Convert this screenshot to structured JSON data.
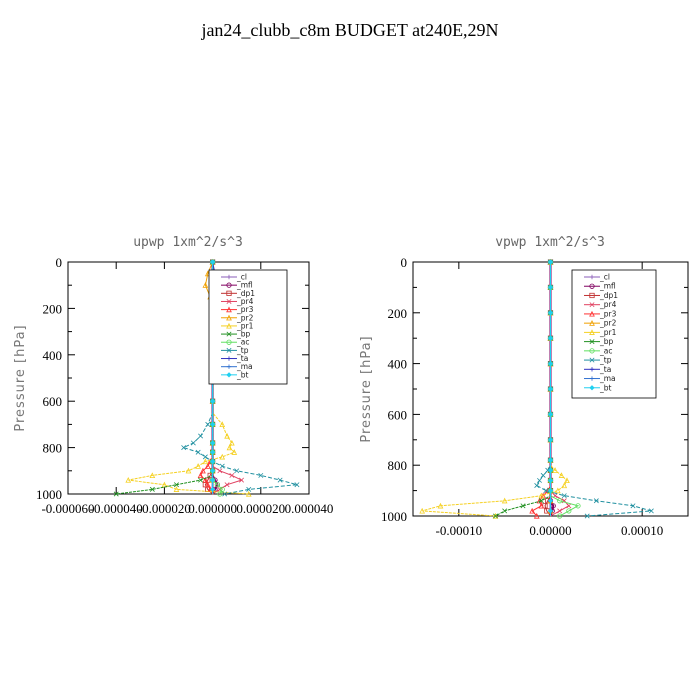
{
  "title": "jan24_clubb_c8m  BUDGET at240E,29N",
  "chart_data": [
    {
      "type": "line",
      "title": "upwp   1xm^2/s^3",
      "ylabel": "Pressure [hPa]",
      "xlim": [
        -6e-05,
        4e-05
      ],
      "ylim": [
        1000,
        0
      ],
      "xticks": [
        "-0.000060",
        "-0.000040",
        "-0.000020",
        "0.000000",
        "0.000020",
        "0.000040"
      ],
      "xtick_values": [
        -6e-05,
        -4e-05,
        -2e-05,
        0,
        2e-05,
        4e-05
      ],
      "yticks": [
        0,
        200,
        400,
        600,
        800,
        1000
      ],
      "y": [
        0,
        50,
        100,
        150,
        200,
        250,
        300,
        350,
        400,
        450,
        500,
        550,
        600,
        650,
        700,
        750,
        780,
        800,
        820,
        840,
        860,
        880,
        900,
        920,
        940,
        960,
        980,
        1000
      ],
      "series": [
        {
          "name": "_cl",
          "color": "#8a5cb8",
          "values": [
            0,
            0,
            0,
            0,
            0,
            0,
            0,
            0,
            0,
            0,
            0,
            0,
            0,
            0,
            0,
            0,
            0,
            0,
            0,
            0,
            0,
            0,
            0,
            0,
            0,
            0,
            0,
            0
          ]
        },
        {
          "name": "_mfl",
          "color": "#800060",
          "values": [
            0,
            0,
            0,
            0,
            0,
            0,
            0,
            0,
            0,
            0,
            0,
            0,
            0,
            0,
            0,
            0,
            0,
            0,
            0,
            0,
            0,
            0,
            0,
            0,
            1e-06,
            2e-06,
            1e-06,
            0
          ]
        },
        {
          "name": "_dp1",
          "color": "#c03030",
          "values": [
            0,
            0,
            0,
            0,
            0,
            0,
            0,
            0,
            0,
            0,
            0,
            0,
            0,
            0,
            0,
            0,
            0,
            0,
            0,
            0,
            0,
            0,
            0,
            -1e-06,
            -2e-06,
            -3e-06,
            -2e-06,
            0
          ]
        },
        {
          "name": "_pr4",
          "color": "#e04060",
          "values": [
            0,
            0,
            0,
            0,
            0,
            0,
            0,
            0,
            0,
            0,
            0,
            0,
            0,
            0,
            0,
            0,
            0,
            0,
            0,
            0,
            0,
            0,
            3e-06,
            8e-06,
            1.2e-05,
            6e-06,
            3e-06,
            0
          ]
        },
        {
          "name": "_pr3",
          "color": "#ff3030",
          "values": [
            0,
            0,
            0,
            0,
            0,
            0,
            0,
            0,
            0,
            0,
            0,
            0,
            0,
            0,
            0,
            0,
            0,
            0,
            0,
            0,
            -1e-06,
            -2e-06,
            -4e-06,
            -5e-06,
            -3e-06,
            -2e-06,
            -1e-06,
            0
          ]
        },
        {
          "name": "_pr2",
          "color": "#f0a000",
          "values": [
            0,
            -2e-06,
            -3e-06,
            -1e-06,
            0,
            0,
            0,
            0,
            0,
            0,
            0,
            0,
            0,
            0,
            0,
            0,
            0,
            0,
            0,
            0,
            0,
            0,
            0,
            0,
            0,
            0,
            0,
            0
          ]
        },
        {
          "name": "_pr1",
          "color": "#f5d020",
          "values": [
            0,
            0,
            0,
            0,
            0,
            0,
            0,
            0,
            0,
            0,
            0,
            0,
            0,
            0,
            4e-06,
            6e-06,
            8e-06,
            7e-06,
            9e-06,
            4e-06,
            -3e-06,
            -6e-06,
            -1e-05,
            -2.5e-05,
            -3.5e-05,
            -2e-05,
            -1.5e-05,
            1.5e-05
          ]
        },
        {
          "name": "_bp",
          "color": "#209020",
          "values": [
            0,
            0,
            0,
            0,
            0,
            0,
            0,
            0,
            0,
            0,
            0,
            0,
            0,
            0,
            0,
            0,
            0,
            0,
            0,
            0,
            0,
            0,
            0,
            0,
            -5e-06,
            -1.5e-05,
            -2.5e-05,
            -4e-05
          ]
        },
        {
          "name": "_ac",
          "color": "#60e060",
          "values": [
            0,
            0,
            0,
            0,
            0,
            0,
            0,
            0,
            0,
            0,
            0,
            0,
            0,
            0,
            0,
            0,
            0,
            0,
            0,
            0,
            0,
            0,
            0,
            0,
            0,
            2e-06,
            4e-06,
            3e-06
          ]
        },
        {
          "name": "_tp",
          "color": "#2090a0",
          "values": [
            0,
            0,
            0,
            0,
            0,
            0,
            0,
            0,
            0,
            0,
            0,
            0,
            0,
            0,
            -2e-06,
            -5e-06,
            -8e-06,
            -1.2e-05,
            -6e-06,
            -3e-06,
            0,
            4e-06,
            1e-05,
            2e-05,
            2.8e-05,
            3.5e-05,
            1.5e-05,
            5e-06
          ]
        },
        {
          "name": "_ta",
          "color": "#3030c0",
          "values": [
            0,
            1e-06,
            2e-06,
            1e-06,
            0,
            0,
            0,
            0,
            0,
            0,
            0,
            0,
            0,
            0,
            0,
            0,
            0,
            0,
            0,
            0,
            0,
            0,
            0,
            0,
            0,
            0,
            0,
            0
          ]
        },
        {
          "name": "_ma",
          "color": "#3070d0",
          "values": [
            0,
            0,
            0,
            0,
            0,
            0,
            0,
            0,
            0,
            0,
            0,
            0,
            0,
            0,
            0,
            0,
            0,
            0,
            0,
            0,
            0,
            0,
            0,
            0,
            0,
            0,
            0,
            0
          ]
        },
        {
          "name": "_bt",
          "color": "#20d0f0",
          "values": [
            0,
            0,
            0,
            0,
            0,
            0,
            0,
            0,
            0,
            0,
            0,
            0,
            0,
            0,
            0,
            0,
            0,
            0,
            0,
            0,
            0,
            0,
            0,
            0,
            0,
            0,
            0,
            0
          ]
        }
      ]
    },
    {
      "type": "line",
      "title": "vpwp   1xm^2/s^3",
      "ylabel": "Pressure [hPa]",
      "xlim": [
        -0.00015,
        0.00015
      ],
      "ylim": [
        1000,
        0
      ],
      "xticks": [
        "-0.00010",
        "0.00000",
        "0.00010"
      ],
      "xtick_values": [
        -0.0001,
        0,
        0.0001
      ],
      "yticks": [
        0,
        200,
        400,
        600,
        800,
        1000
      ],
      "y": [
        0,
        50,
        100,
        150,
        200,
        250,
        300,
        350,
        400,
        450,
        500,
        550,
        600,
        650,
        700,
        750,
        780,
        800,
        820,
        840,
        860,
        880,
        900,
        920,
        940,
        960,
        980,
        1000
      ],
      "series": [
        {
          "name": "_cl",
          "color": "#8a5cb8",
          "values": [
            0,
            0,
            0,
            0,
            0,
            0,
            0,
            0,
            0,
            0,
            0,
            0,
            0,
            0,
            0,
            0,
            0,
            0,
            0,
            0,
            0,
            0,
            0,
            0,
            0,
            0,
            0,
            0
          ]
        },
        {
          "name": "_mfl",
          "color": "#800060",
          "values": [
            0,
            0,
            0,
            0,
            0,
            0,
            0,
            0,
            0,
            0,
            0,
            0,
            0,
            0,
            0,
            0,
            0,
            0,
            0,
            0,
            0,
            0,
            0,
            0,
            0,
            3e-06,
            2e-06,
            0
          ]
        },
        {
          "name": "_dp1",
          "color": "#c03030",
          "values": [
            0,
            0,
            0,
            0,
            0,
            0,
            0,
            0,
            0,
            0,
            0,
            0,
            0,
            0,
            0,
            0,
            0,
            0,
            0,
            0,
            0,
            0,
            0,
            0,
            -3e-06,
            -6e-06,
            -4e-06,
            0
          ]
        },
        {
          "name": "_pr4",
          "color": "#e04060",
          "values": [
            0,
            0,
            0,
            0,
            0,
            0,
            0,
            0,
            0,
            0,
            0,
            0,
            0,
            0,
            0,
            0,
            0,
            0,
            0,
            0,
            0,
            0,
            0,
            5e-06,
            1.5e-05,
            2e-05,
            1e-05,
            0
          ]
        },
        {
          "name": "_pr3",
          "color": "#ff3030",
          "values": [
            0,
            0,
            0,
            0,
            0,
            0,
            0,
            0,
            0,
            0,
            0,
            0,
            0,
            0,
            0,
            0,
            0,
            0,
            0,
            0,
            0,
            0,
            -3e-06,
            -8e-06,
            -1.2e-05,
            -1e-05,
            -2e-05,
            -1.5e-05
          ]
        },
        {
          "name": "_pr2",
          "color": "#f0a000",
          "values": [
            0,
            0,
            0,
            0,
            0,
            0,
            0,
            0,
            0,
            0,
            0,
            0,
            0,
            0,
            0,
            0,
            0,
            0,
            0,
            0,
            0,
            0,
            0,
            0,
            0,
            0,
            0,
            0
          ]
        },
        {
          "name": "_pr1",
          "color": "#f5d020",
          "values": [
            0,
            0,
            0,
            0,
            0,
            0,
            0,
            0,
            0,
            0,
            0,
            0,
            0,
            0,
            0,
            0,
            0,
            0,
            5e-06,
            1.2e-05,
            1.8e-05,
            1.5e-05,
            8e-06,
            -1e-05,
            -5e-05,
            -0.00012,
            -0.00014,
            -6e-05
          ]
        },
        {
          "name": "_bp",
          "color": "#209020",
          "values": [
            0,
            0,
            0,
            0,
            0,
            0,
            0,
            0,
            0,
            0,
            0,
            0,
            0,
            0,
            0,
            0,
            0,
            0,
            0,
            0,
            0,
            0,
            0,
            0,
            -1e-05,
            -3e-05,
            -5e-05,
            -6e-05
          ]
        },
        {
          "name": "_ac",
          "color": "#60e060",
          "values": [
            0,
            0,
            0,
            0,
            0,
            0,
            0,
            0,
            0,
            0,
            0,
            0,
            0,
            0,
            0,
            0,
            0,
            0,
            0,
            0,
            0,
            0,
            0,
            0,
            1e-05,
            3e-05,
            2e-05,
            1e-05
          ]
        },
        {
          "name": "_tp",
          "color": "#2090a0",
          "values": [
            0,
            0,
            0,
            0,
            0,
            0,
            0,
            0,
            0,
            0,
            0,
            0,
            0,
            0,
            0,
            0,
            0,
            0,
            -3e-06,
            -8e-06,
            -1.2e-05,
            -1.5e-05,
            -5e-06,
            1.5e-05,
            5e-05,
            9e-05,
            0.00011,
            4e-05
          ]
        },
        {
          "name": "_ta",
          "color": "#3030c0",
          "values": [
            0,
            0,
            0,
            0,
            0,
            0,
            0,
            0,
            0,
            0,
            0,
            0,
            0,
            0,
            0,
            0,
            0,
            0,
            0,
            0,
            0,
            0,
            0,
            0,
            0,
            0,
            0,
            0
          ]
        },
        {
          "name": "_ma",
          "color": "#3070d0",
          "values": [
            0,
            0,
            0,
            0,
            0,
            0,
            0,
            0,
            0,
            0,
            0,
            0,
            0,
            0,
            0,
            0,
            0,
            0,
            0,
            0,
            0,
            0,
            0,
            0,
            0,
            0,
            0,
            0
          ]
        },
        {
          "name": "_bt",
          "color": "#20d0f0",
          "values": [
            0,
            0,
            0,
            0,
            0,
            0,
            0,
            0,
            0,
            0,
            0,
            0,
            0,
            0,
            0,
            0,
            0,
            0,
            0,
            0,
            0,
            0,
            0,
            0,
            0,
            0,
            0,
            0
          ]
        }
      ]
    }
  ]
}
